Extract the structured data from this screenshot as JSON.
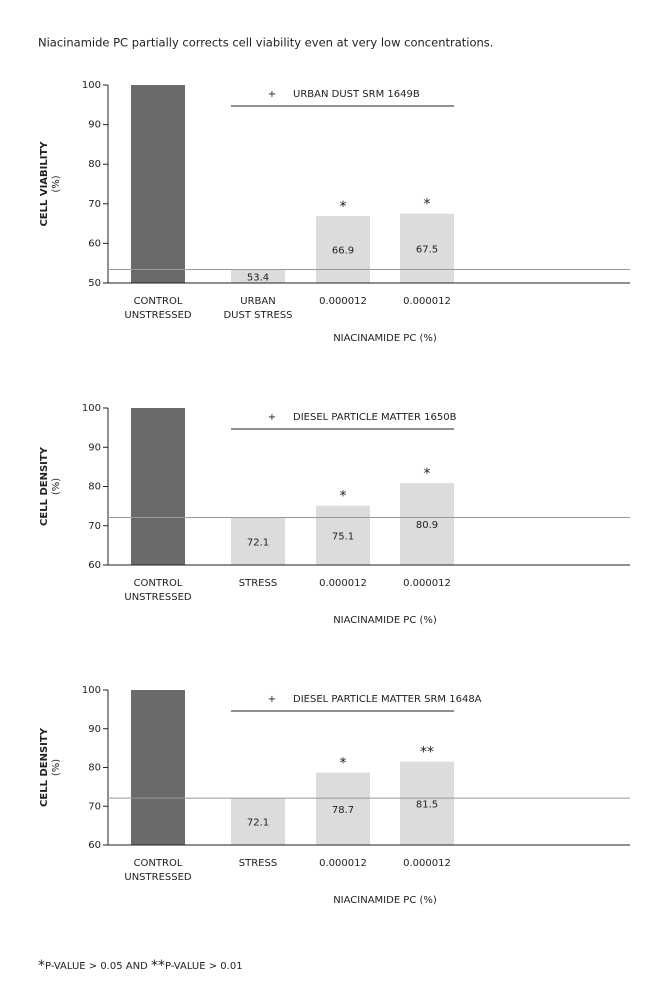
{
  "heading": "Niacinamide PC partially corrects cell viability even at very low concentrations.",
  "footnote": [
    "*",
    "P-VALUE > 0.05 AND ",
    "**",
    "P-VALUE > 0.01"
  ],
  "chart_data": [
    {
      "type": "bar",
      "ylabel": "CELL VIABILITY",
      "ylabel_unit": "(%)",
      "annotation": [
        "+",
        "URBAN DUST SRM 1649B"
      ],
      "categories": [
        [
          "CONTROL",
          "UNSTRESSED"
        ],
        [
          "URBAN",
          "DUST STRESS"
        ],
        [
          "0.000012"
        ],
        [
          "0.000012"
        ]
      ],
      "xlabel": "NIACINAMIDE PC (%)",
      "values": [
        100,
        53.4,
        66.9,
        67.5
      ],
      "value_labels": [
        null,
        "53.4",
        "66.9",
        "67.5"
      ],
      "significance": [
        null,
        null,
        "*",
        "*"
      ],
      "colors": [
        "#6a6a6a",
        "#dcdcdc",
        "#dcdcdc",
        "#dcdcdc"
      ],
      "ylim": [
        50,
        100
      ],
      "yticks": [
        50,
        60,
        70,
        80,
        90,
        100
      ]
    },
    {
      "type": "bar",
      "ylabel": "CELL DENSITY",
      "ylabel_unit": "(%)",
      "annotation": [
        "+",
        "DIESEL PARTICLE MATTER 1650B"
      ],
      "categories": [
        [
          "CONTROL",
          "UNSTRESSED"
        ],
        [
          "STRESS"
        ],
        [
          "0.000012"
        ],
        [
          "0.000012"
        ]
      ],
      "xlabel": "NIACINAMIDE PC (%)",
      "values": [
        100,
        72.1,
        75.1,
        80.9
      ],
      "value_labels": [
        null,
        "72.1",
        "75.1",
        "80.9"
      ],
      "significance": [
        null,
        null,
        "*",
        "*"
      ],
      "colors": [
        "#6a6a6a",
        "#dcdcdc",
        "#dcdcdc",
        "#dcdcdc"
      ],
      "ylim": [
        60,
        100
      ],
      "yticks": [
        60,
        70,
        80,
        90,
        100
      ]
    },
    {
      "type": "bar",
      "ylabel": "CELL DENSITY",
      "ylabel_unit": "(%)",
      "annotation": [
        "+",
        "DIESEL PARTICLE MATTER SRM 1648A"
      ],
      "categories": [
        [
          "CONTROL",
          "UNSTRESSED"
        ],
        [
          "STRESS"
        ],
        [
          "0.000012"
        ],
        [
          "0.000012"
        ]
      ],
      "xlabel": "NIACINAMIDE PC (%)",
      "values": [
        100,
        72.1,
        78.7,
        81.5
      ],
      "value_labels": [
        null,
        "72.1",
        "78.7",
        "81.5"
      ],
      "significance": [
        null,
        null,
        "*",
        "**"
      ],
      "colors": [
        "#6a6a6a",
        "#dcdcdc",
        "#dcdcdc",
        "#dcdcdc"
      ],
      "ylim": [
        60,
        100
      ],
      "yticks": [
        60,
        70,
        80,
        90,
        100
      ]
    }
  ]
}
